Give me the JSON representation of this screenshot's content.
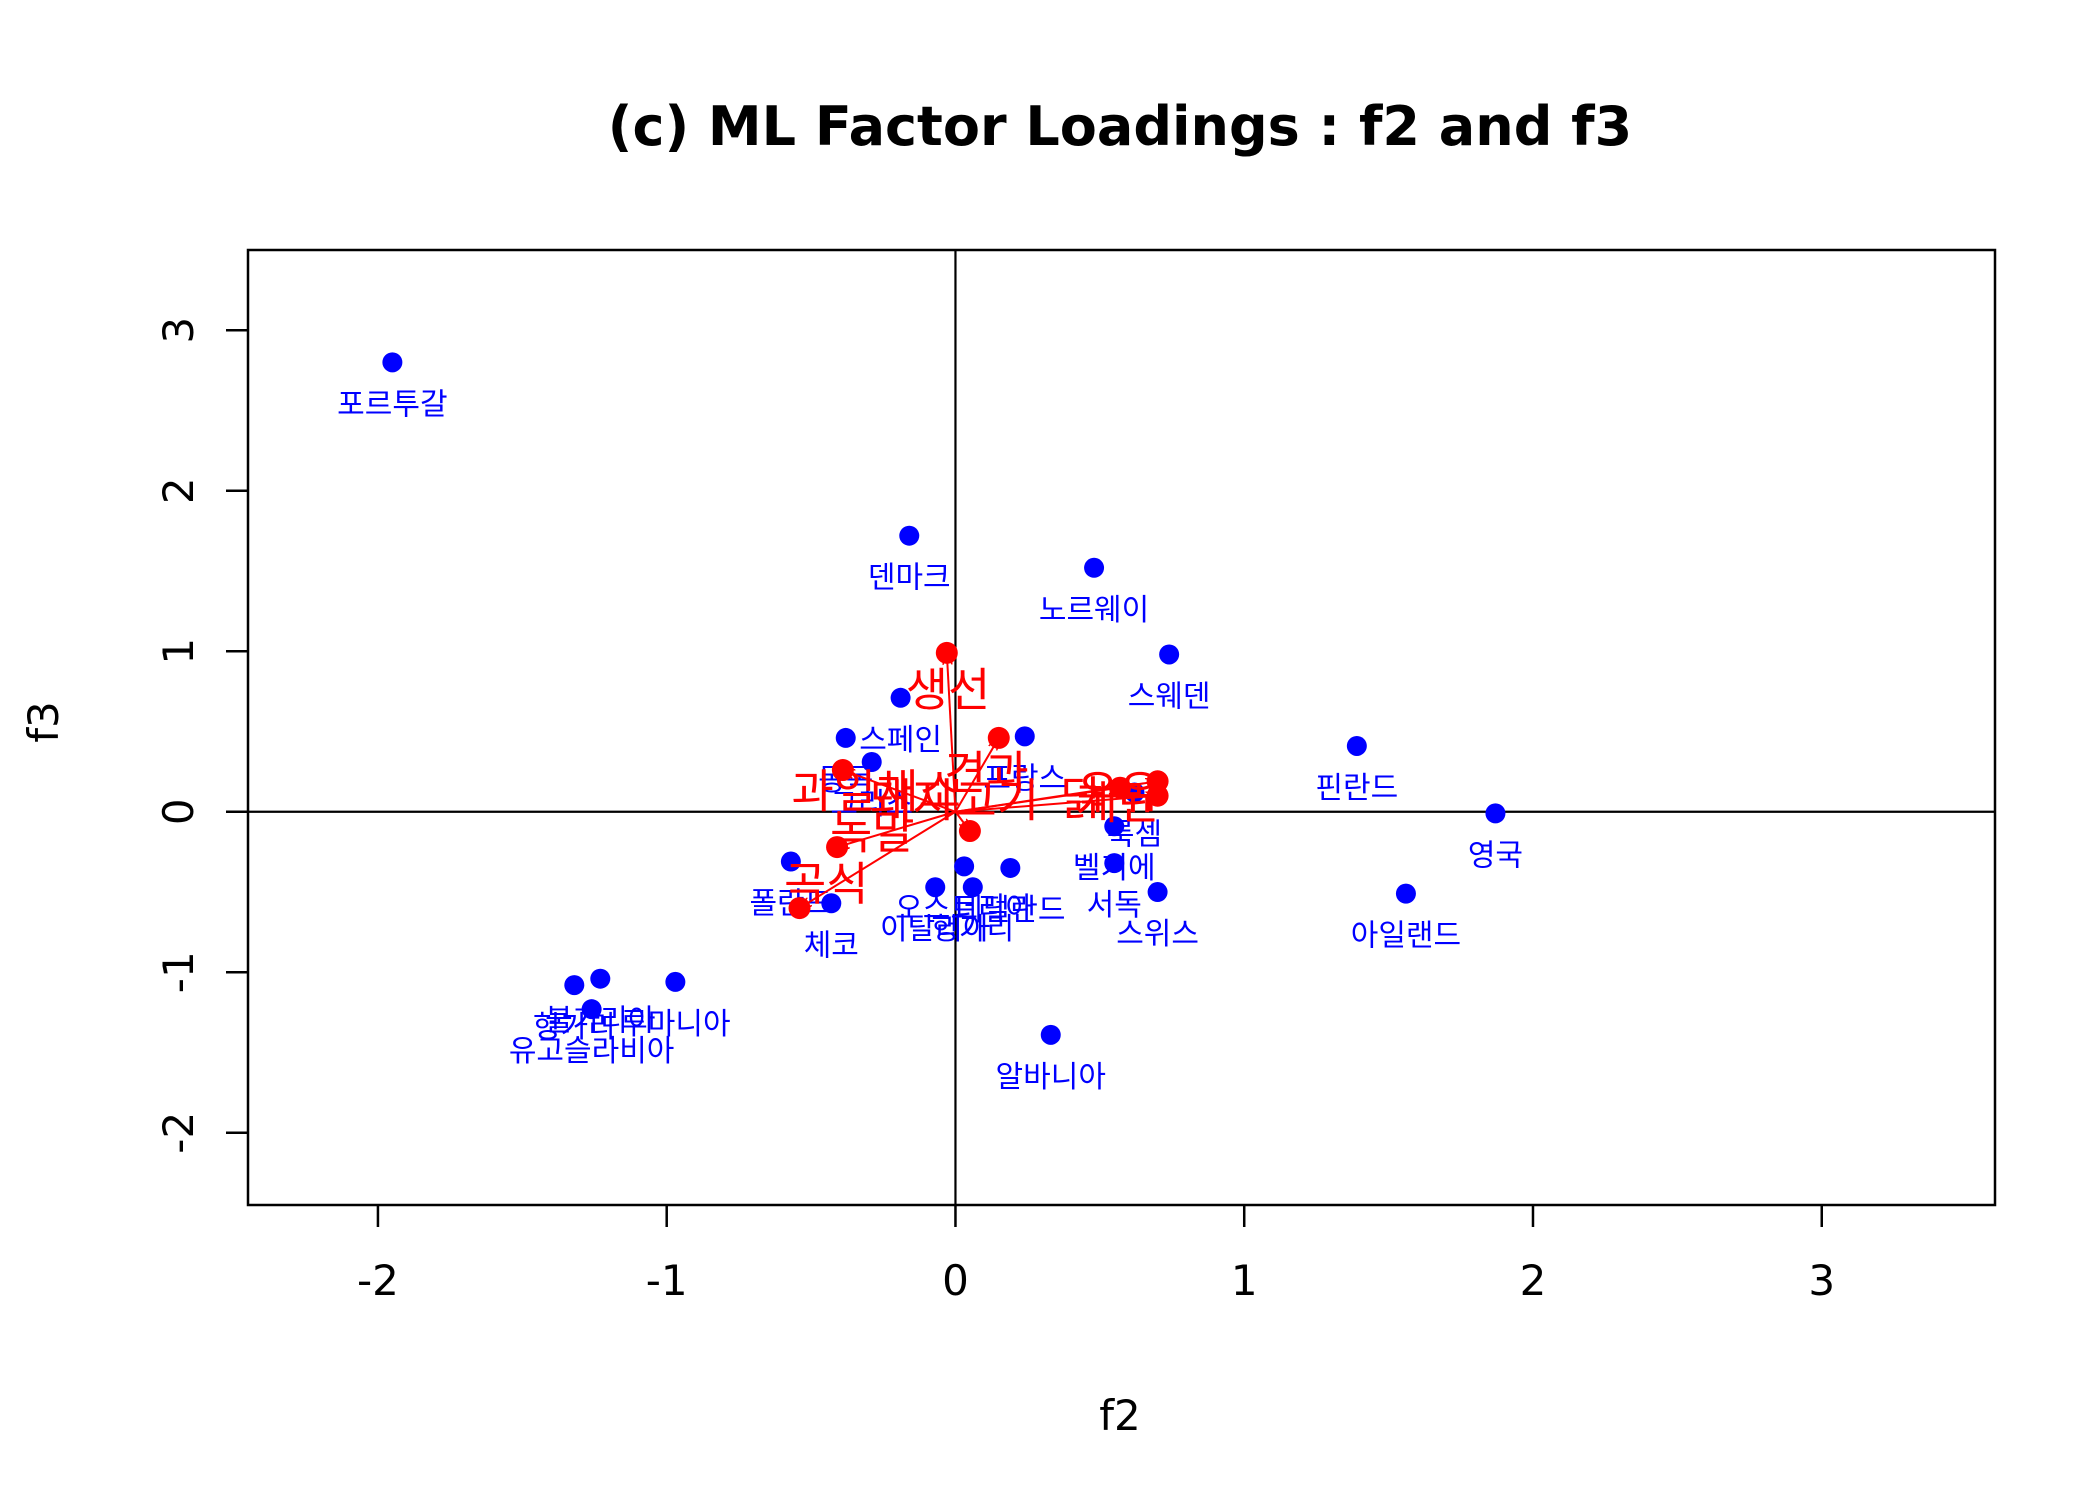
{
  "chart_data": {
    "type": "scatter",
    "title": "(c) ML Factor Loadings : f2 and f3",
    "xlabel": "f2",
    "ylabel": "f3",
    "xlim": [
      -2.45,
      3.6
    ],
    "ylim": [
      -2.45,
      3.5
    ],
    "xticks": [
      -2,
      -1,
      0,
      1,
      2,
      3
    ],
    "yticks": [
      -2,
      -1,
      0,
      1,
      2,
      3
    ],
    "reference_lines": {
      "x": 0,
      "y": 0
    },
    "colors": {
      "scores": "#0000ff",
      "loadings": "#ff0000",
      "axes": "#000000"
    },
    "scores": [
      {
        "label": "포르투갈",
        "x": -1.95,
        "y": 2.8
      },
      {
        "label": "덴마크",
        "x": -0.16,
        "y": 1.72
      },
      {
        "label": "노르웨이",
        "x": 0.48,
        "y": 1.52
      },
      {
        "label": "스웨덴",
        "x": 0.74,
        "y": 0.98
      },
      {
        "label": "스페인",
        "x": -0.19,
        "y": 0.71
      },
      {
        "label": "동독",
        "x": -0.38,
        "y": 0.46
      },
      {
        "label": "그리스",
        "x": -0.29,
        "y": 0.31
      },
      {
        "label": "프랑스",
        "x": 0.24,
        "y": 0.47
      },
      {
        "label": "핀란드",
        "x": 1.39,
        "y": 0.41
      },
      {
        "label": "영국",
        "x": 1.87,
        "y": -0.01
      },
      {
        "label": "벨기에",
        "x": 0.55,
        "y": -0.09
      },
      {
        "label": "룩셈",
        "x": 0.62,
        "y": 0.12
      },
      {
        "label": "서독",
        "x": 0.55,
        "y": -0.32
      },
      {
        "label": "스위스",
        "x": 0.7,
        "y": -0.5
      },
      {
        "label": "아일랜드",
        "x": 1.56,
        "y": -0.51
      },
      {
        "label": "폴란드",
        "x": -0.57,
        "y": -0.31
      },
      {
        "label": "체코",
        "x": -0.43,
        "y": -0.57
      },
      {
        "label": "오스트리아",
        "x": 0.03,
        "y": -0.34
      },
      {
        "label": "이탈리아",
        "x": -0.07,
        "y": -0.47
      },
      {
        "label": "네덜란드",
        "x": 0.19,
        "y": -0.35
      },
      {
        "label": "헝가리",
        "x": 0.06,
        "y": -0.47
      },
      {
        "label": "알바니아",
        "x": 0.33,
        "y": -1.39
      },
      {
        "label": "불가리아",
        "x": -1.23,
        "y": -1.04
      },
      {
        "label": "루마니아",
        "x": -0.97,
        "y": -1.06
      },
      {
        "label": "헝가리",
        "x": -1.32,
        "y": -1.08
      },
      {
        "label": "유고슬라비아",
        "x": -1.26,
        "y": -1.23
      }
    ],
    "loadings": [
      {
        "label": "생선",
        "x": -0.03,
        "y": 0.99
      },
      {
        "label": "견과",
        "x": 0.15,
        "y": 0.46
      },
      {
        "label": "과일채소",
        "x": -0.39,
        "y": 0.26
      },
      {
        "label": "녹말",
        "x": -0.41,
        "y": -0.22
      },
      {
        "label": "곡식",
        "x": -0.54,
        "y": -0.6
      },
      {
        "label": "돼지고기",
        "x": 0.05,
        "y": -0.12
      },
      {
        "label": "닭",
        "x": 0.57,
        "y": 0.15
      },
      {
        "label": "우유",
        "x": 0.7,
        "y": 0.19
      },
      {
        "label": "계란",
        "x": 0.7,
        "y": 0.1
      }
    ]
  }
}
